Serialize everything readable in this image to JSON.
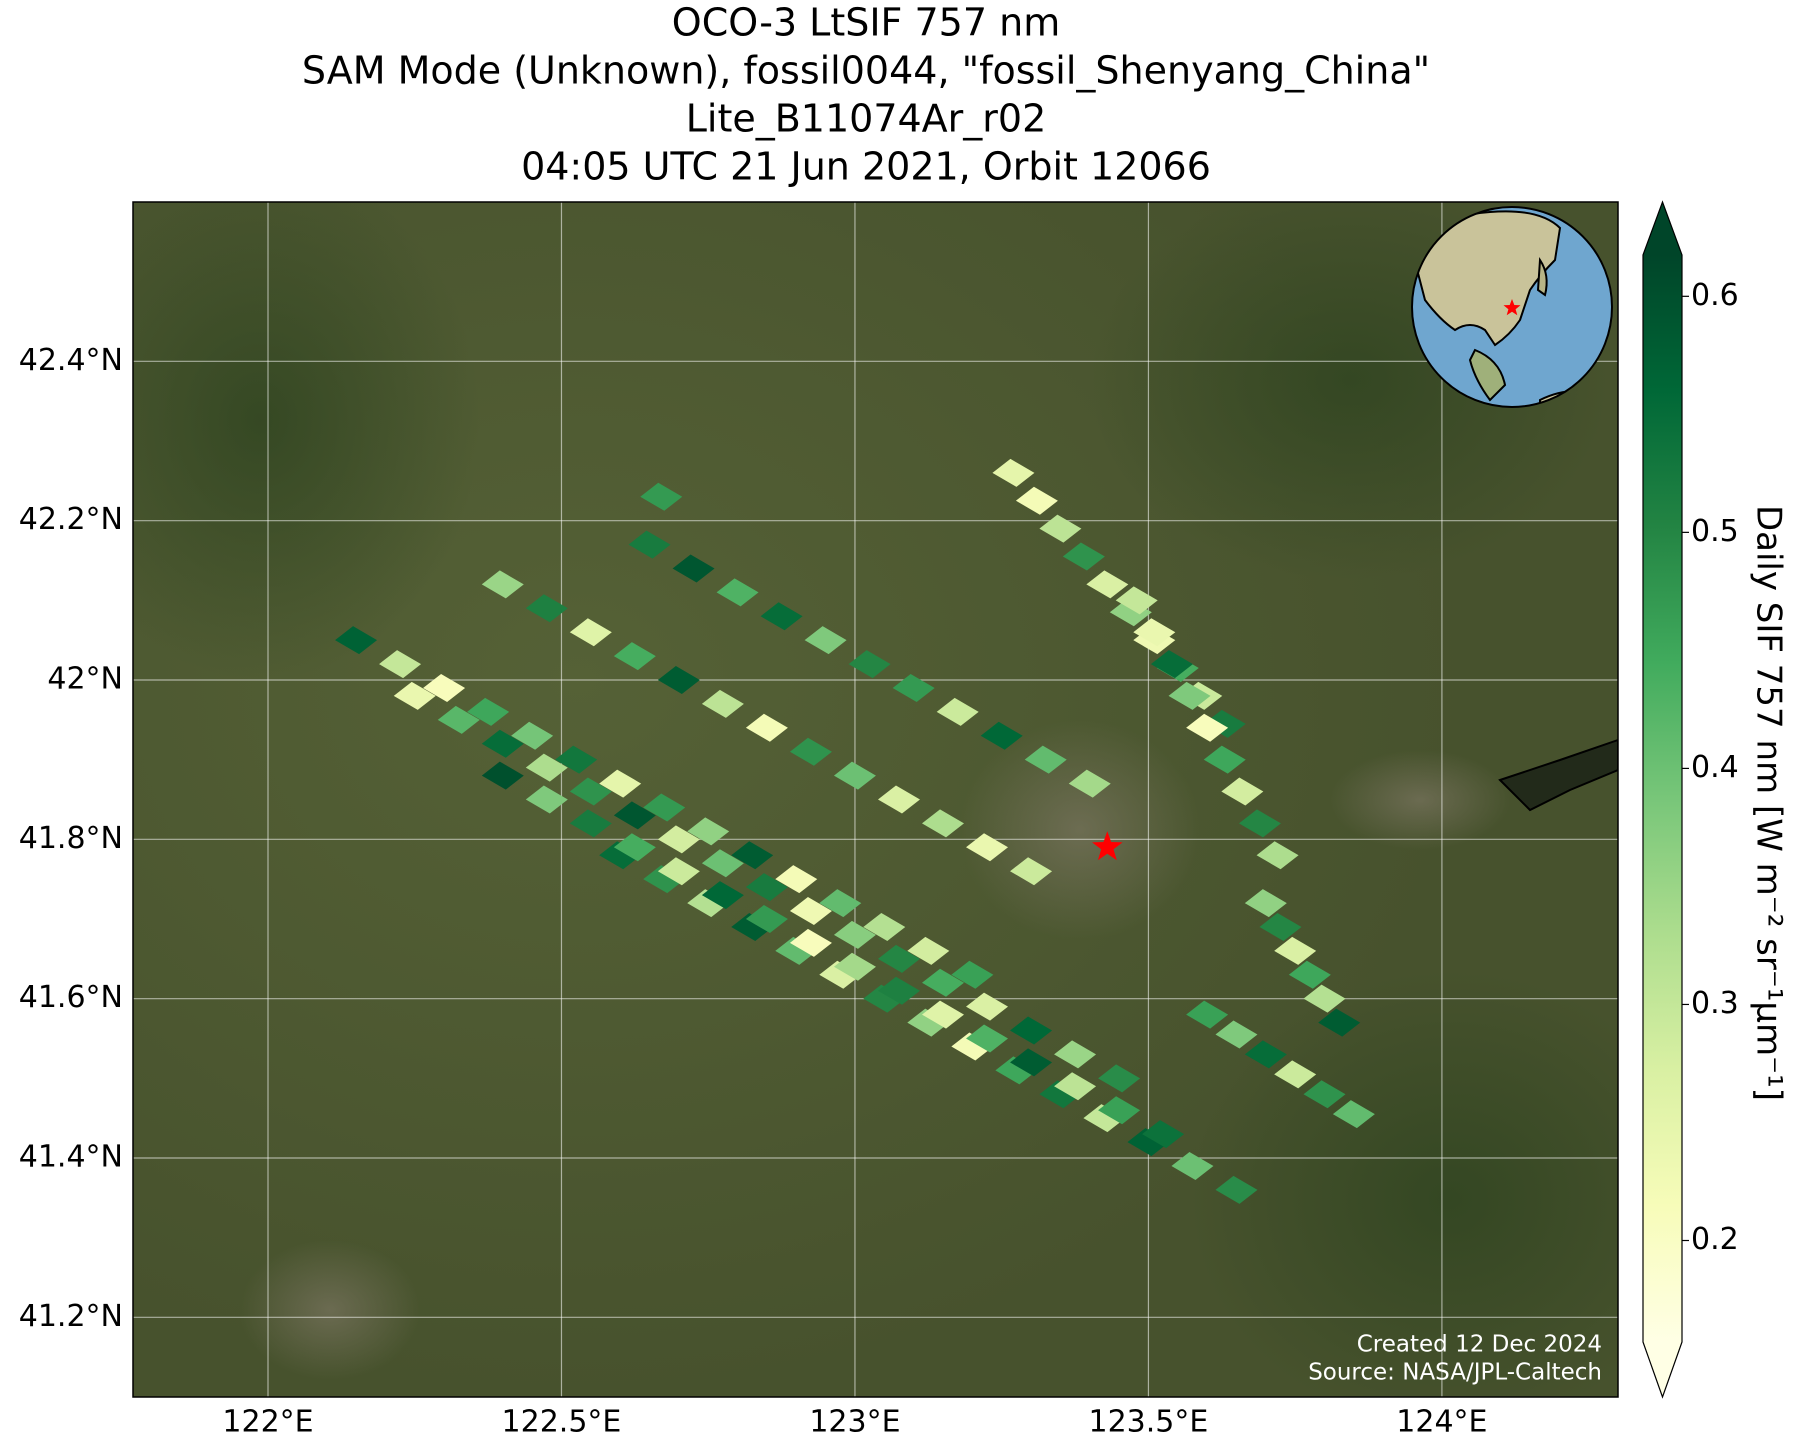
{
  "chart_data": {
    "type": "map",
    "title": [
      "OCO-3 LtSIF 757 nm",
      "SAM Mode (Unknown), fossil0044, \"fossil_Shenyang_China\"",
      "Lite_B11074Ar_r02",
      "04:05 UTC 21 Jun 2021, Orbit 12066"
    ],
    "colorbar_label": "Daily SIF 757 nm [W m⁻² sr⁻¹μm⁻¹]",
    "annotations": [
      "Created 12 Dec 2024",
      "Source: NASA/JPL-Caltech"
    ],
    "colormap": "YlGn",
    "clim": [
      0.157,
      0.6175
    ],
    "cticks": [
      0.2,
      0.3,
      0.4,
      0.5,
      0.6
    ],
    "xlim": [
      121.77,
      124.3
    ],
    "ylim": [
      41.1,
      42.6
    ],
    "xticks": [
      {
        "value": 122,
        "label": "122°E"
      },
      {
        "value": 122.5,
        "label": "122.5°E"
      },
      {
        "value": 123,
        "label": "123°E"
      },
      {
        "value": 123.5,
        "label": "123.5°E"
      },
      {
        "value": 124,
        "label": "124°E"
      }
    ],
    "yticks": [
      {
        "value": 41.2,
        "label": "41.2°N"
      },
      {
        "value": 41.4,
        "label": "41.4°N"
      },
      {
        "value": 41.6,
        "label": "41.6°N"
      },
      {
        "value": 41.8,
        "label": "41.8°N"
      },
      {
        "value": 42,
        "label": "42°N"
      },
      {
        "value": 42.2,
        "label": "42.2°N"
      },
      {
        "value": 42.4,
        "label": "42.4°N"
      }
    ],
    "grid": true,
    "target": {
      "lon": 123.43,
      "lat": 41.79,
      "color": "#ff0000"
    },
    "x": [
      122.6,
      122.675,
      122.75,
      122.825,
      122.9,
      122.975,
      123.05,
      123.125,
      123.2,
      123.275,
      123.35,
      123.425,
      123.5,
      123.575,
      123.65,
      122.4,
      122.475,
      122.55,
      122.625,
      122.7,
      122.775,
      122.85,
      122.925,
      123,
      123.075,
      123.15,
      123.225,
      123.3,
      123.375,
      123.45,
      123.525,
      122.25,
      122.325,
      122.4,
      122.475,
      122.55,
      122.625,
      122.7,
      122.775,
      122.85,
      122.925,
      123,
      123.075,
      123.15,
      123.225,
      123.3,
      123.375,
      123.45,
      122.15,
      122.225,
      122.3,
      122.375,
      122.45,
      122.525,
      122.6,
      122.675,
      122.75,
      122.825,
      122.9,
      122.975,
      123.05,
      123.125,
      123.2,
      122.4,
      122.475,
      122.55,
      122.625,
      122.7,
      122.775,
      122.85,
      122.925,
      123,
      123.075,
      123.15,
      123.225,
      123.3,
      122.65,
      122.725,
      122.8,
      122.875,
      122.95,
      123.025,
      123.1,
      123.175,
      123.25,
      123.325,
      123.4,
      123.27,
      123.31,
      123.35,
      123.39,
      123.43,
      123.47,
      123.51,
      123.55,
      123.59,
      123.63,
      123.48,
      123.51,
      123.54,
      123.57,
      123.6,
      123.63,
      123.66,
      123.69,
      123.72,
      123.7,
      123.725,
      123.75,
      123.775,
      123.8,
      123.825,
      123.6,
      123.65,
      123.7,
      123.75,
      123.8,
      123.85,
      122.67
    ],
    "y": [
      41.78,
      41.75,
      41.72,
      41.69,
      41.66,
      41.63,
      41.6,
      41.57,
      41.54,
      41.51,
      41.48,
      41.45,
      41.42,
      41.39,
      41.36,
      41.88,
      41.85,
      41.82,
      41.79,
      41.76,
      41.73,
      41.7,
      41.67,
      41.64,
      41.61,
      41.58,
      41.55,
      41.52,
      41.49,
      41.46,
      41.43,
      41.98,
      41.95,
      41.92,
      41.89,
      41.86,
      41.83,
      41.8,
      41.77,
      41.74,
      41.71,
      41.68,
      41.65,
      41.62,
      41.59,
      41.56,
      41.53,
      41.5,
      42.05,
      42.02,
      41.99,
      41.96,
      41.93,
      41.9,
      41.87,
      41.84,
      41.81,
      41.78,
      41.75,
      41.72,
      41.69,
      41.66,
      41.63,
      42.12,
      42.09,
      42.06,
      42.03,
      42,
      41.97,
      41.94,
      41.91,
      41.88,
      41.85,
      41.82,
      41.79,
      41.76,
      42.17,
      42.14,
      42.11,
      42.08,
      42.05,
      42.02,
      41.99,
      41.96,
      41.93,
      41.9,
      41.87,
      42.26,
      42.225,
      42.19,
      42.155,
      42.12,
      42.085,
      42.05,
      42.015,
      41.98,
      41.945,
      42.1,
      42.06,
      42.02,
      41.98,
      41.94,
      41.9,
      41.86,
      41.82,
      41.78,
      41.72,
      41.69,
      41.66,
      41.63,
      41.6,
      41.57,
      41.58,
      41.555,
      41.53,
      41.505,
      41.48,
      41.455,
      42.23
    ],
    "values": [
      0.55,
      0.48,
      0.32,
      0.58,
      0.41,
      0.27,
      0.5,
      0.36,
      0.22,
      0.45,
      0.53,
      0.3,
      0.57,
      0.4,
      0.49,
      0.6,
      0.38,
      0.52,
      0.44,
      0.29,
      0.56,
      0.47,
      0.21,
      0.34,
      0.51,
      0.26,
      0.43,
      0.58,
      0.31,
      0.46,
      0.54,
      0.24,
      0.42,
      0.55,
      0.33,
      0.48,
      0.59,
      0.28,
      0.4,
      0.52,
      0.23,
      0.37,
      0.5,
      0.44,
      0.27,
      0.56,
      0.35,
      0.49,
      0.57,
      0.3,
      0.21,
      0.45,
      0.39,
      0.53,
      0.25,
      0.47,
      0.36,
      0.58,
      0.22,
      0.41,
      0.32,
      0.28,
      0.46,
      0.35,
      0.51,
      0.26,
      0.44,
      0.58,
      0.31,
      0.22,
      0.48,
      0.4,
      0.27,
      0.33,
      0.24,
      0.29,
      0.52,
      0.59,
      0.43,
      0.55,
      0.38,
      0.5,
      0.47,
      0.29,
      0.56,
      0.41,
      0.34,
      0.25,
      0.22,
      0.31,
      0.48,
      0.27,
      0.36,
      0.23,
      0.44,
      0.29,
      0.52,
      0.3,
      0.24,
      0.55,
      0.38,
      0.21,
      0.45,
      0.28,
      0.5,
      0.33,
      0.36,
      0.5,
      0.27,
      0.45,
      0.32,
      0.58,
      0.46,
      0.38,
      0.55,
      0.29,
      0.48,
      0.41,
      0.47
    ]
  }
}
